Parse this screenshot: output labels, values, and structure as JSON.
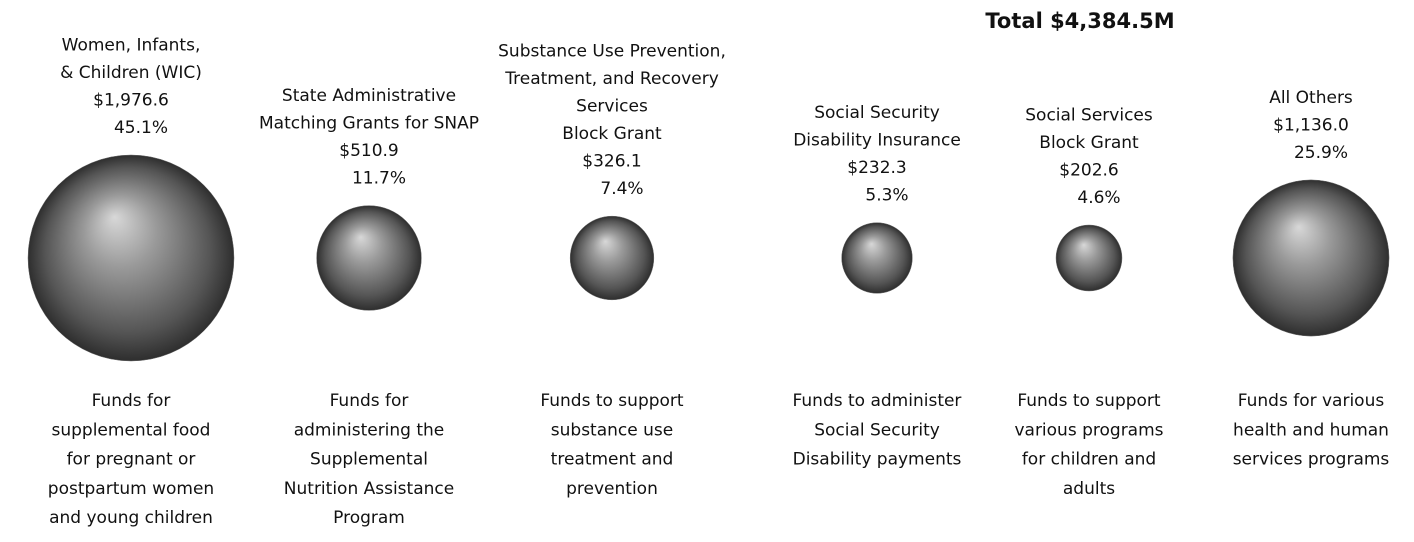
{
  "chart_data": {
    "type": "bubble",
    "title": "Total $4,384.5M",
    "categories": [
      [
        "Women, Infants,",
        "& Children (WIC)"
      ],
      [
        "State Administrative",
        "Matching Grants for SNAP"
      ],
      [
        "Substance Use Prevention,",
        "Treatment, and Recovery",
        "Services",
        "Block Grant"
      ],
      [
        "Social Security",
        "Disability Insurance"
      ],
      [
        "Social Services",
        "Block Grant"
      ],
      [
        "All Others"
      ]
    ],
    "values": [
      1976.6,
      510.9,
      326.1,
      232.3,
      202.6,
      1136.0
    ],
    "value_labels": [
      "$1,976.6",
      "$510.9",
      "$326.1",
      "$232.3",
      "$202.6",
      "$1,136.0"
    ],
    "shares": [
      45.1,
      11.7,
      7.4,
      5.3,
      4.6,
      25.9
    ],
    "share_labels": [
      "45.1%",
      "11.7%",
      "7.4%",
      "5.3%",
      "4.6%",
      "25.9%"
    ],
    "descriptions": [
      [
        "Funds for",
        "supplemental food",
        "for pregnant or",
        "postpartum women",
        "and young children"
      ],
      [
        "Funds for",
        "administering the",
        "Supplemental",
        "Nutrition Assistance",
        "Program"
      ],
      [
        "Funds to support",
        "substance use",
        "treatment and",
        "prevention"
      ],
      [
        "Funds to administer",
        "Social Security",
        "Disability payments"
      ],
      [
        "Funds to support",
        "various programs",
        "for children and",
        "adults"
      ],
      [
        "Funds for various",
        "health and human",
        "services programs"
      ]
    ],
    "color": "#6e6e6e"
  }
}
